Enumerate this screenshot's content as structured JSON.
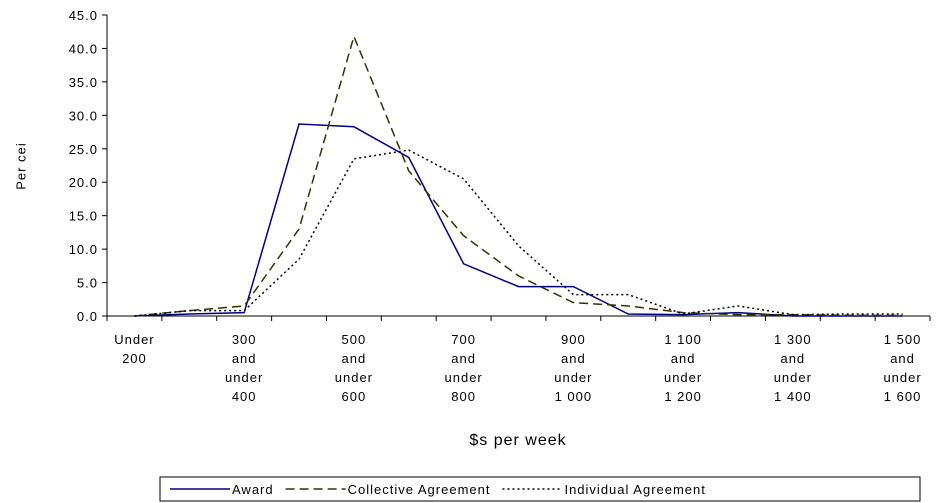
{
  "chart_data": {
    "type": "line",
    "y_label": "Per cei",
    "x_label": "$s per week",
    "categories": [
      [
        "Under",
        "200"
      ],
      null,
      [
        "300",
        "and",
        "under",
        "400"
      ],
      null,
      [
        "500",
        "and",
        "under",
        "600"
      ],
      null,
      [
        "700",
        "and",
        "under",
        "800"
      ],
      null,
      [
        "900",
        "and",
        "under",
        "1 000"
      ],
      null,
      [
        "1 100",
        "and",
        "under",
        "1 200"
      ],
      null,
      [
        "1 300",
        "and",
        "under",
        "1 400"
      ],
      null,
      [
        "1 500",
        "and",
        "under",
        "1 600"
      ]
    ],
    "series": [
      {
        "name": "Award",
        "color": "#000080",
        "style": "solid",
        "values": [
          0,
          0.3,
          0.5,
          28.7,
          28.3,
          23.7,
          7.8,
          4.4,
          4.4,
          0.3,
          0.2,
          0.5,
          0,
          0,
          0
        ]
      },
      {
        "name": "Collective Agreement",
        "color": "#333300",
        "style": "dashed",
        "values": [
          0,
          0.8,
          1.5,
          13,
          41.8,
          21.7,
          12,
          6,
          2,
          1.5,
          0.5,
          0.2,
          0.2,
          0.1,
          0.1
        ]
      },
      {
        "name": "Individual Agreement",
        "color": "#000000",
        "style": "dotted",
        "values": [
          0,
          0.8,
          0.8,
          8.5,
          23.5,
          24.8,
          20.5,
          10.5,
          3.2,
          3.2,
          0.3,
          1.5,
          0.2,
          0.3,
          0.3
        ]
      }
    ],
    "ylim": [
      0,
      45
    ],
    "yticks": [
      {
        "value": 0,
        "label": "0.0"
      },
      {
        "value": 5,
        "label": "5.0"
      },
      {
        "value": 10,
        "label": "10.0"
      },
      {
        "value": 15,
        "label": "15.0"
      },
      {
        "value": 20,
        "label": "20.0"
      },
      {
        "value": 25,
        "label": "25.0"
      },
      {
        "value": 30,
        "label": "30.0"
      },
      {
        "value": 35,
        "label": "35.0"
      },
      {
        "value": 40,
        "label": "40.0"
      },
      {
        "value": 45,
        "label": "45.0"
      }
    ],
    "legend": "bottom"
  }
}
